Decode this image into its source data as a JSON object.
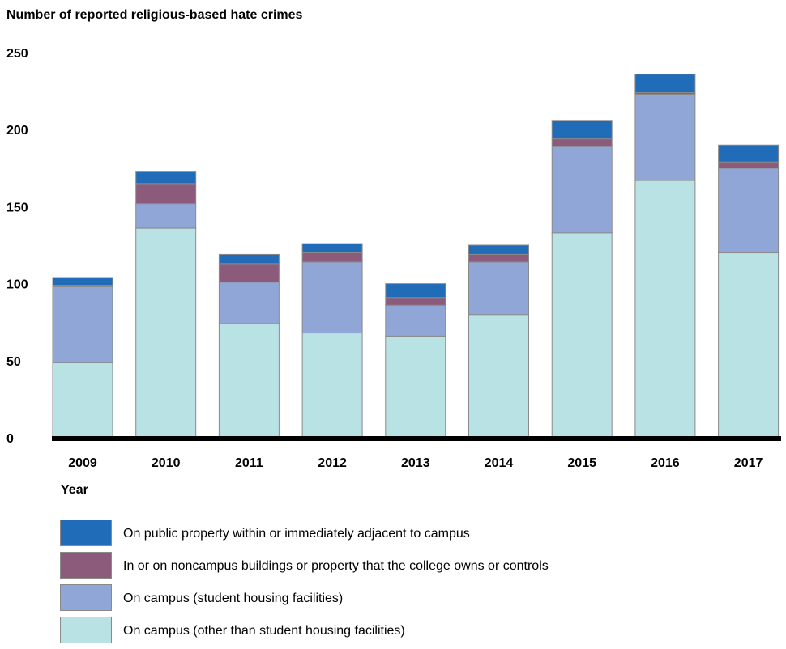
{
  "chart_data": {
    "type": "bar",
    "stacked": true,
    "title": "Number of reported religious-based hate crimes",
    "xlabel": "Year",
    "ylabel": "",
    "ylim": [
      0,
      250
    ],
    "yticks": [
      0,
      50,
      100,
      150,
      200,
      250
    ],
    "grid": false,
    "legend_position": "bottom-left",
    "categories": [
      "2009",
      "2010",
      "2011",
      "2012",
      "2013",
      "2014",
      "2015",
      "2016",
      "2017"
    ],
    "series": [
      {
        "name": "On campus (other than student housing facilities)",
        "color": "#b8e2e3",
        "values": [
          49,
          136,
          74,
          68,
          66,
          80,
          133,
          167,
          120
        ]
      },
      {
        "name": "On campus (student housing facilities)",
        "color": "#8fa6d6",
        "values": [
          49,
          16,
          27,
          46,
          20,
          34,
          56,
          56,
          55
        ]
      },
      {
        "name": "In or on noncampus buildings or property that the college owns or controls",
        "color": "#8c5b7c",
        "values": [
          1,
          13,
          12,
          6,
          5,
          5,
          5,
          1,
          4
        ]
      },
      {
        "name": "On public property within or immediately adjacent to campus",
        "color": "#216cb8",
        "values": [
          5,
          8,
          6,
          6,
          9,
          6,
          12,
          12,
          11
        ]
      }
    ]
  },
  "legend_order": [
    3,
    2,
    1,
    0
  ]
}
